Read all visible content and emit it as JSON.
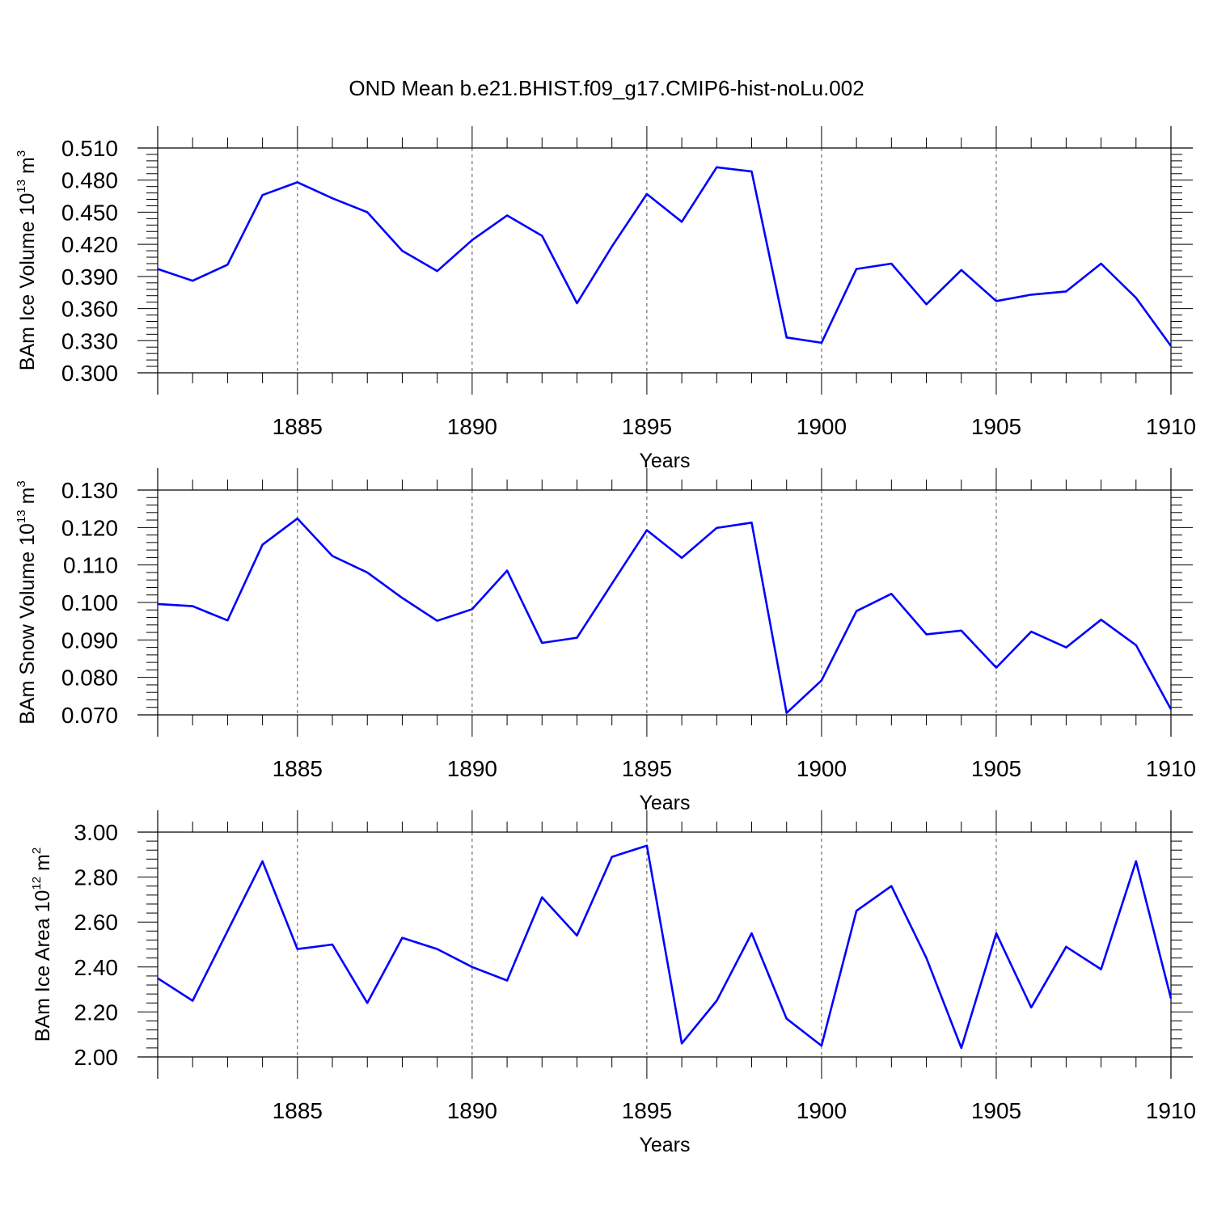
{
  "title": "OND Mean b.e21.BHIST.f09_g17.CMIP6-hist-noLu.002",
  "chart_data": [
    {
      "type": "line",
      "ylabel": {
        "main": "BAm Ice Volume 10",
        "exp": "13",
        "unit": " m",
        "unit_exp": "3"
      },
      "xlabel": "Years",
      "xlim": [
        1881,
        1910
      ],
      "xticks": [
        1885,
        1890,
        1895,
        1900,
        1905,
        1910
      ],
      "xtick_labels": [
        "1885",
        "1890",
        "1895",
        "1900",
        "1905",
        "1910"
      ],
      "ylim": [
        0.3,
        0.51
      ],
      "yticks": [
        0.3,
        0.33,
        0.36,
        0.39,
        0.42,
        0.45,
        0.48,
        0.51
      ],
      "ytick_labels": [
        "0.300",
        "0.330",
        "0.360",
        "0.390",
        "0.420",
        "0.450",
        "0.480",
        "0.510"
      ],
      "series": [
        {
          "name": "BAm Ice Volume",
          "color": "#0000ff",
          "x": [
            1881,
            1882,
            1883,
            1884,
            1885,
            1886,
            1887,
            1888,
            1889,
            1890,
            1891,
            1892,
            1893,
            1894,
            1895,
            1896,
            1897,
            1898,
            1899,
            1900,
            1901,
            1902,
            1903,
            1904,
            1905,
            1906,
            1907,
            1908,
            1909,
            1910
          ],
          "values": [
            0.397,
            0.386,
            0.401,
            0.466,
            0.478,
            0.463,
            0.45,
            0.414,
            0.395,
            0.424,
            0.447,
            0.428,
            0.365,
            0.418,
            0.467,
            0.441,
            0.492,
            0.488,
            0.333,
            0.328,
            0.397,
            0.402,
            0.364,
            0.396,
            0.367,
            0.373,
            0.376,
            0.402,
            0.37,
            0.325
          ]
        }
      ]
    },
    {
      "type": "line",
      "ylabel": {
        "main": "BAm Snow Volume 10",
        "exp": "13",
        "unit": " m",
        "unit_exp": "3"
      },
      "xlabel": "Years",
      "xlim": [
        1881,
        1910
      ],
      "xticks": [
        1885,
        1890,
        1895,
        1900,
        1905,
        1910
      ],
      "xtick_labels": [
        "1885",
        "1890",
        "1895",
        "1900",
        "1905",
        "1910"
      ],
      "ylim": [
        0.07,
        0.13
      ],
      "yticks": [
        0.07,
        0.08,
        0.09,
        0.1,
        0.11,
        0.12,
        0.13
      ],
      "ytick_labels": [
        "0.070",
        "0.080",
        "0.090",
        "0.100",
        "0.110",
        "0.120",
        "0.130"
      ],
      "series": [
        {
          "name": "BAm Snow Volume",
          "color": "#0000ff",
          "x": [
            1881,
            1882,
            1883,
            1884,
            1885,
            1886,
            1887,
            1888,
            1889,
            1890,
            1891,
            1892,
            1893,
            1894,
            1895,
            1896,
            1897,
            1898,
            1899,
            1900,
            1901,
            1902,
            1903,
            1904,
            1905,
            1906,
            1907,
            1908,
            1909,
            1910
          ],
          "values": [
            0.0996,
            0.099,
            0.0952,
            0.1154,
            0.1224,
            0.1124,
            0.108,
            0.1012,
            0.0951,
            0.0982,
            0.1085,
            0.0892,
            0.0906,
            0.105,
            0.1193,
            0.1119,
            0.1199,
            0.1213,
            0.0705,
            0.0792,
            0.0977,
            0.1023,
            0.0915,
            0.0925,
            0.0826,
            0.0922,
            0.088,
            0.0954,
            0.0886,
            0.0715
          ]
        }
      ]
    },
    {
      "type": "line",
      "ylabel": {
        "main": "BAm Ice Area 10",
        "exp": "12",
        "unit": " m",
        "unit_exp": "2"
      },
      "xlabel": "Years",
      "xlim": [
        1881,
        1910
      ],
      "xticks": [
        1885,
        1890,
        1895,
        1900,
        1905,
        1910
      ],
      "xtick_labels": [
        "1885",
        "1890",
        "1895",
        "1900",
        "1905",
        "1910"
      ],
      "ylim": [
        2.0,
        3.0
      ],
      "yticks": [
        2.0,
        2.2,
        2.4,
        2.6,
        2.8,
        3.0
      ],
      "ytick_labels": [
        "2.00",
        "2.20",
        "2.40",
        "2.60",
        "2.80",
        "3.00"
      ],
      "series": [
        {
          "name": "BAm Ice Area",
          "color": "#0000ff",
          "x": [
            1881,
            1882,
            1883,
            1884,
            1885,
            1886,
            1887,
            1888,
            1889,
            1890,
            1891,
            1892,
            1893,
            1894,
            1895,
            1896,
            1897,
            1898,
            1899,
            1900,
            1901,
            1902,
            1903,
            1904,
            1905,
            1906,
            1907,
            1908,
            1909,
            1910
          ],
          "values": [
            2.35,
            2.25,
            2.56,
            2.87,
            2.48,
            2.5,
            2.24,
            2.53,
            2.48,
            2.4,
            2.34,
            2.71,
            2.54,
            2.89,
            2.94,
            2.06,
            2.25,
            2.55,
            2.17,
            2.05,
            2.65,
            2.76,
            2.44,
            2.04,
            2.55,
            2.22,
            2.49,
            2.39,
            2.87,
            2.26
          ]
        }
      ]
    }
  ]
}
